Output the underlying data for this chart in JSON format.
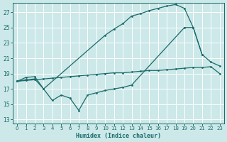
{
  "xlabel": "Humidex (Indice chaleur)",
  "bg_color": "#cce8e8",
  "grid_color": "#b0d0d0",
  "line_color": "#1a6b6b",
  "xlim": [
    -0.5,
    23.5
  ],
  "ylim": [
    12.5,
    28.2
  ],
  "xticks": [
    0,
    1,
    2,
    3,
    4,
    5,
    6,
    7,
    8,
    9,
    10,
    11,
    12,
    13,
    14,
    15,
    16,
    17,
    18,
    19,
    20,
    21,
    22,
    23
  ],
  "yticks": [
    13,
    15,
    17,
    19,
    21,
    23,
    25,
    27
  ],
  "line1_x": [
    0,
    1,
    2,
    3,
    4,
    5,
    6,
    7,
    8,
    9,
    10,
    11,
    12,
    13,
    14,
    15,
    16,
    17,
    18,
    19,
    20,
    21,
    22,
    23
  ],
  "line1_y": [
    18.0,
    18.1,
    18.2,
    18.3,
    18.4,
    18.5,
    18.6,
    18.7,
    18.8,
    18.9,
    19.0,
    19.1,
    19.1,
    19.2,
    19.3,
    19.4,
    19.4,
    19.5,
    19.6,
    19.7,
    19.8,
    19.8,
    19.9,
    19.0
  ],
  "line2_x": [
    0,
    1,
    2,
    3,
    4,
    5,
    6,
    7,
    8,
    9,
    10,
    11,
    12,
    13,
    19,
    20,
    21,
    22,
    23
  ],
  "line2_y": [
    18.0,
    18.2,
    18.3,
    17.0,
    15.5,
    16.2,
    15.8,
    14.2,
    16.2,
    16.5,
    16.8,
    17.0,
    17.2,
    17.5,
    25.0,
    25.0,
    21.5,
    20.5,
    20.0
  ],
  "line3_x": [
    0,
    1,
    2,
    3,
    10,
    11,
    12,
    13,
    14,
    15,
    16,
    17,
    18,
    19,
    20,
    21
  ],
  "line3_y": [
    18.0,
    18.5,
    18.6,
    17.0,
    24.0,
    24.8,
    25.5,
    26.5,
    26.8,
    27.2,
    27.5,
    27.8,
    28.0,
    27.5,
    25.0,
    21.5
  ]
}
